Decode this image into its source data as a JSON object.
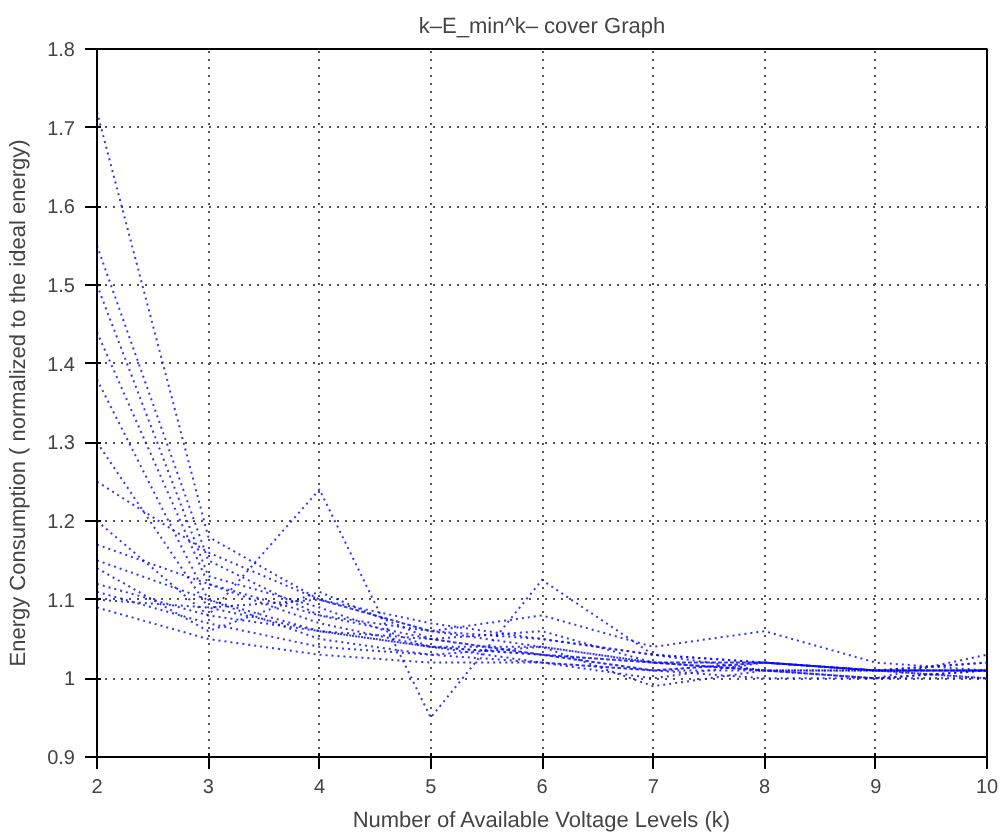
{
  "chart_data": {
    "type": "line",
    "title": "k–E_min^k– cover Graph",
    "xlabel": "Number of Available Voltage Levels (k)",
    "ylabel": "Energy Consumption ( normalized to the ideal energy)",
    "x": [
      2,
      3,
      4,
      5,
      6,
      7,
      8,
      9,
      10
    ],
    "xlim": [
      2,
      10
    ],
    "xticks": [
      2,
      3,
      4,
      5,
      6,
      7,
      8,
      9,
      10
    ],
    "ylim": [
      0.9,
      1.8
    ],
    "yticks": [
      0.9,
      1,
      1.1,
      1.2,
      1.3,
      1.4,
      1.5,
      1.6,
      1.7,
      1.8
    ],
    "grid": true,
    "line_style": "dotted",
    "marker": "none",
    "series": [
      {
        "color": "#0000ff",
        "values": [
          1.72,
          1.18,
          1.1,
          1.06,
          1.04,
          1.02,
          1.02,
          1.01,
          1.01
        ]
      },
      {
        "color": "#0000ff",
        "values": [
          1.55,
          1.15,
          1.08,
          1.05,
          1.03,
          1.02,
          1.01,
          1.01,
          1.0
        ]
      },
      {
        "color": "#0000ff",
        "values": [
          1.5,
          1.13,
          1.09,
          1.04,
          1.03,
          1.01,
          1.02,
          1.01,
          1.01
        ]
      },
      {
        "color": "#0000ff",
        "values": [
          1.44,
          1.12,
          1.07,
          1.04,
          1.04,
          1.02,
          1.01,
          1.0,
          1.01
        ]
      },
      {
        "color": "#0000ff",
        "values": [
          1.38,
          1.1,
          1.06,
          1.05,
          1.03,
          1.01,
          1.02,
          1.01,
          1.02
        ]
      },
      {
        "color": "#0000ff",
        "values": [
          1.3,
          1.09,
          1.1,
          1.06,
          1.05,
          1.03,
          1.01,
          1.01,
          1.01
        ]
      },
      {
        "color": "#0000ff",
        "values": [
          1.25,
          1.16,
          1.1,
          1.07,
          1.05,
          1.03,
          1.02,
          1.01,
          1.02
        ]
      },
      {
        "color": "#0000ff",
        "values": [
          1.2,
          1.08,
          1.24,
          0.95,
          1.125,
          1.03,
          1.02,
          1.01,
          1.01
        ]
      },
      {
        "color": "#0000ff",
        "values": [
          1.17,
          1.12,
          1.08,
          1.06,
          1.08,
          1.04,
          1.06,
          1.02,
          1.01
        ]
      },
      {
        "color": "#0000ff",
        "values": [
          1.15,
          1.1,
          1.05,
          1.03,
          1.04,
          0.99,
          1.01,
          1.0,
          1.03
        ]
      },
      {
        "color": "#0000ff",
        "values": [
          1.12,
          1.08,
          1.06,
          1.04,
          1.03,
          1.02,
          1.02,
          1.01,
          1.01
        ]
      },
      {
        "color": "#0000ff",
        "values": [
          1.11,
          1.07,
          1.04,
          1.03,
          1.02,
          1.01,
          1.01,
          1.0,
          1.0
        ]
      },
      {
        "color": "#0000ff",
        "values": [
          1.1,
          1.09,
          1.06,
          1.04,
          1.02,
          1.0,
          1.02,
          1.01,
          1.01
        ]
      },
      {
        "color": "#0000ff",
        "values": [
          1.09,
          1.05,
          1.03,
          1.02,
          1.02,
          1.01,
          1.0,
          1.0,
          1.01
        ]
      },
      {
        "color": "#0000ff",
        "values": [
          1.14,
          1.06,
          1.11,
          1.05,
          1.06,
          1.02,
          1.01,
          1.01,
          1.0
        ]
      }
    ]
  }
}
